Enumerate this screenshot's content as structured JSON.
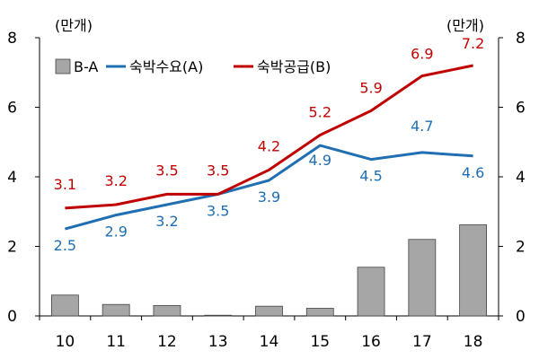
{
  "chart_data": {
    "type": "bar+line",
    "categories": [
      "10",
      "11",
      "12",
      "13",
      "14",
      "15",
      "16",
      "17",
      "18"
    ],
    "y_unit_left": "(만개)",
    "y_unit_right": "(만개)",
    "ylim": [
      0,
      8
    ],
    "yticks": [
      "0",
      "2",
      "4",
      "6",
      "8"
    ],
    "grid": false,
    "legend_position": "top-left",
    "series": [
      {
        "name": "B-A",
        "kind": "bar",
        "color": "#a6a6a6",
        "values": [
          0.6,
          0.33,
          0.3,
          0.02,
          0.28,
          0.22,
          1.4,
          2.2,
          2.62
        ]
      },
      {
        "name": "숙박수요(A)",
        "kind": "line",
        "color": "#1f6fb2",
        "values": [
          2.5,
          2.9,
          3.2,
          3.5,
          3.9,
          4.9,
          4.5,
          4.7,
          4.6
        ],
        "labels": [
          "2.5",
          "2.9",
          "3.2",
          "3.5",
          "3.9",
          "4.9",
          "4.5",
          "4.7",
          "4.6"
        ]
      },
      {
        "name": "숙박공급(B)",
        "kind": "line",
        "color": "#c00000",
        "values": [
          3.1,
          3.2,
          3.5,
          3.5,
          4.2,
          5.2,
          5.9,
          6.9,
          7.2
        ],
        "labels": [
          "3.1",
          "3.2",
          "3.5",
          "3.5",
          "4.2",
          "5.2",
          "5.9",
          "6.9",
          "7.2"
        ]
      }
    ]
  }
}
